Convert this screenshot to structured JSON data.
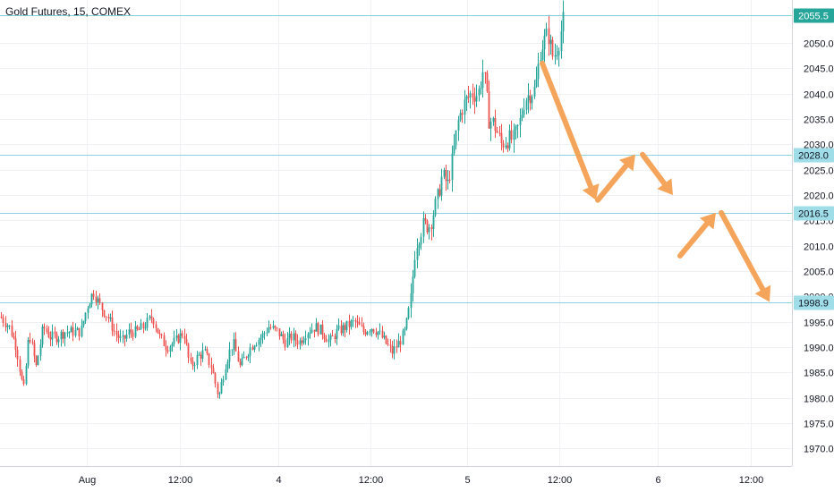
{
  "title": "Gold Futures, 15, COMEX",
  "colors": {
    "up": "#26a69a",
    "down": "#ef5350",
    "grid": "#eef0f3",
    "level_line": "#8ed4e0",
    "arrow": "#f5a55b",
    "price_tag": "#26a69a",
    "level_tag": "#9fdde8"
  },
  "chart_data": {
    "type": "candlestick",
    "title": "Gold Futures, 15, COMEX",
    "ylim": [
      1966.5,
      2058.5
    ],
    "y_ticks": [
      "1970.0",
      "1975.0",
      "1980.0",
      "1985.0",
      "1990.0",
      "1995.0",
      "2000.0",
      "2005.0",
      "2010.0",
      "2015.0",
      "2020.0",
      "2025.0",
      "2030.0",
      "2035.0",
      "2040.0",
      "2045.0",
      "2050.0"
    ],
    "x_ticks": [
      {
        "label": "Aug",
        "t": 97
      },
      {
        "label": "12:00",
        "t": 201
      },
      {
        "label": "4",
        "t": 311
      },
      {
        "label": "12:00",
        "t": 414
      },
      {
        "label": "5",
        "t": 522
      },
      {
        "label": "12:00",
        "t": 625
      },
      {
        "label": "6",
        "t": 735
      },
      {
        "label": "12:00",
        "t": 839
      }
    ],
    "last_price": {
      "label": "2055.5",
      "value": 2055.5
    },
    "levels": [
      {
        "label": "2028.0",
        "value": 2028.0
      },
      {
        "label": "2016.5",
        "value": 2016.5
      },
      {
        "label": "1998.9",
        "value": 1998.9
      }
    ],
    "series_anchors": [
      [
        0,
        1996
      ],
      [
        10,
        1994
      ],
      [
        18,
        1990
      ],
      [
        26,
        1981
      ],
      [
        32,
        1993
      ],
      [
        40,
        1986
      ],
      [
        48,
        1994
      ],
      [
        56,
        1992
      ],
      [
        64,
        1992
      ],
      [
        72,
        1993
      ],
      [
        80,
        1993
      ],
      [
        90,
        1993
      ],
      [
        97,
        1998
      ],
      [
        104,
        2001
      ],
      [
        112,
        1998
      ],
      [
        120,
        1996
      ],
      [
        128,
        1993
      ],
      [
        136,
        1991
      ],
      [
        144,
        1993
      ],
      [
        152,
        1993
      ],
      [
        160,
        1994
      ],
      [
        170,
        1996
      ],
      [
        178,
        1992
      ],
      [
        186,
        1990
      ],
      [
        195,
        1991
      ],
      [
        205,
        1993
      ],
      [
        212,
        1986
      ],
      [
        220,
        1988
      ],
      [
        228,
        1989
      ],
      [
        236,
        1986
      ],
      [
        244,
        1980
      ],
      [
        252,
        1987
      ],
      [
        260,
        1991
      ],
      [
        268,
        1986
      ],
      [
        276,
        1989
      ],
      [
        284,
        1991
      ],
      [
        292,
        1992
      ],
      [
        300,
        1994
      ],
      [
        310,
        1993
      ],
      [
        318,
        1991
      ],
      [
        326,
        1992
      ],
      [
        334,
        1991
      ],
      [
        342,
        1993
      ],
      [
        352,
        1994
      ],
      [
        360,
        1993
      ],
      [
        368,
        1991
      ],
      [
        376,
        1993
      ],
      [
        386,
        1994
      ],
      [
        396,
        1995
      ],
      [
        406,
        1993
      ],
      [
        414,
        1994
      ],
      [
        422,
        1993
      ],
      [
        430,
        1991
      ],
      [
        438,
        1989
      ],
      [
        446,
        1991
      ],
      [
        452,
        1993
      ],
      [
        458,
        1998
      ],
      [
        464,
        2010
      ],
      [
        472,
        2014
      ],
      [
        480,
        2014
      ],
      [
        488,
        2019
      ],
      [
        494,
        2024
      ],
      [
        500,
        2022
      ],
      [
        506,
        2028
      ],
      [
        512,
        2035
      ],
      [
        518,
        2038
      ],
      [
        526,
        2040
      ],
      [
        534,
        2040
      ],
      [
        540,
        2045
      ],
      [
        546,
        2035
      ],
      [
        552,
        2034
      ],
      [
        560,
        2030
      ],
      [
        566,
        2031
      ],
      [
        574,
        2031
      ],
      [
        580,
        2034
      ],
      [
        586,
        2039
      ],
      [
        592,
        2040
      ],
      [
        598,
        2041
      ],
      [
        604,
        2049
      ],
      [
        612,
        2052
      ],
      [
        618,
        2047
      ],
      [
        624,
        2050
      ],
      [
        630,
        2055.5
      ]
    ],
    "projection_arrows": [
      {
        "from": [
          606,
          2046
        ],
        "to": [
          666,
          2019
        ]
      },
      {
        "from": [
          668,
          2019
        ],
        "to": [
          710,
          2028
        ]
      },
      {
        "from": [
          718,
          2028
        ],
        "to": [
          752,
          2020
        ]
      },
      {
        "from": [
          760,
          2008
        ],
        "to": [
          800,
          2016.5
        ]
      },
      {
        "from": [
          806,
          2016.5
        ],
        "to": [
          860,
          1998.9
        ]
      }
    ]
  }
}
